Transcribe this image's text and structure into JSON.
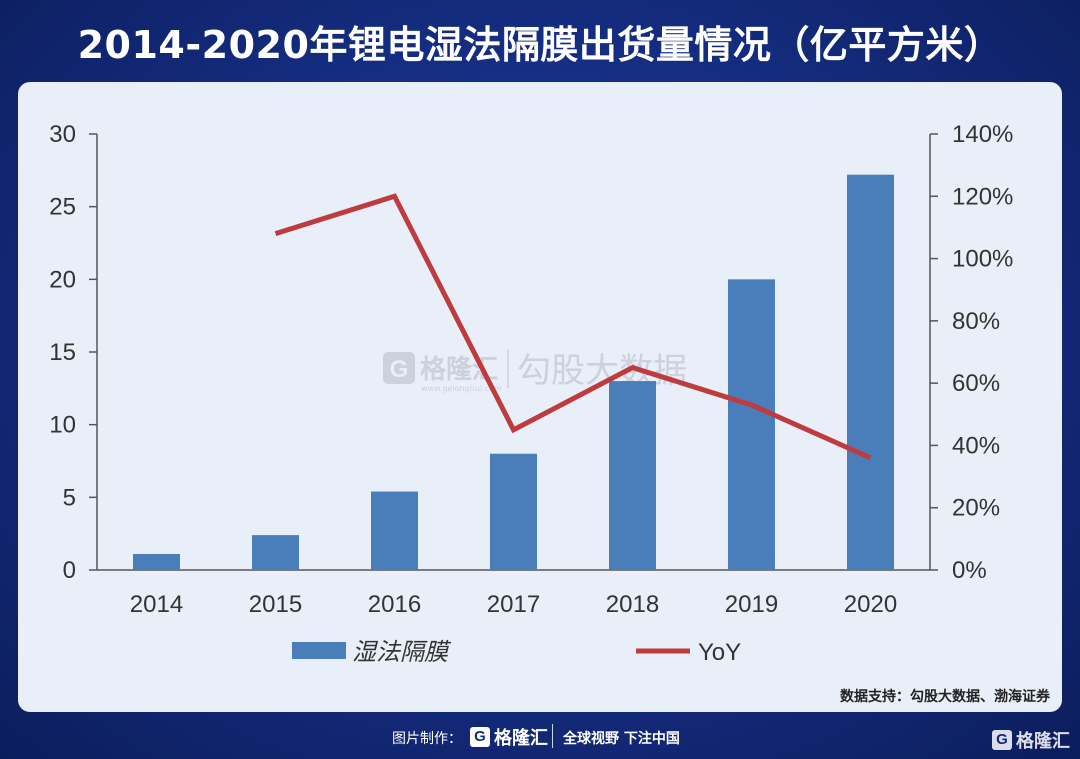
{
  "title": "2014-2020年锂电湿法隔膜出货量情况（亿平方米）",
  "chart_data": {
    "type": "bar",
    "categories": [
      "2014",
      "2015",
      "2016",
      "2017",
      "2018",
      "2019",
      "2020"
    ],
    "series": [
      {
        "name": "湿法隔膜",
        "type": "bar",
        "axis": "left",
        "color": "#4a7ebb",
        "values": [
          1.1,
          2.4,
          5.4,
          8.0,
          13.0,
          20.0,
          27.2
        ]
      },
      {
        "name": "YoY",
        "type": "line",
        "axis": "right",
        "color": "#be3b3e",
        "values": [
          null,
          108,
          120,
          45,
          65,
          53,
          36
        ]
      }
    ],
    "y_left": {
      "ylim": [
        0,
        30
      ],
      "ticks": [
        "0",
        "5",
        "10",
        "15",
        "20",
        "25",
        "30"
      ]
    },
    "y_right": {
      "ylim": [
        0,
        140
      ],
      "ticks": [
        "0%",
        "20%",
        "40%",
        "60%",
        "80%",
        "100%",
        "120%",
        "140%"
      ]
    },
    "legend": {
      "placement": "bottom",
      "bar_label": "湿法隔膜",
      "line_label": "YoY"
    },
    "xlabel": "",
    "ylabel": "",
    "grid": false
  },
  "watermark": {
    "brand": "格隆汇",
    "url": "www.gelonghui.com",
    "text": "勾股大数据"
  },
  "source": "数据支持：勾股大数据、渤海证券",
  "footer": {
    "credit": "图片制作：",
    "logo": "格隆汇",
    "slogan": "全球视野 下注中国"
  },
  "corner_logo": "格隆汇"
}
